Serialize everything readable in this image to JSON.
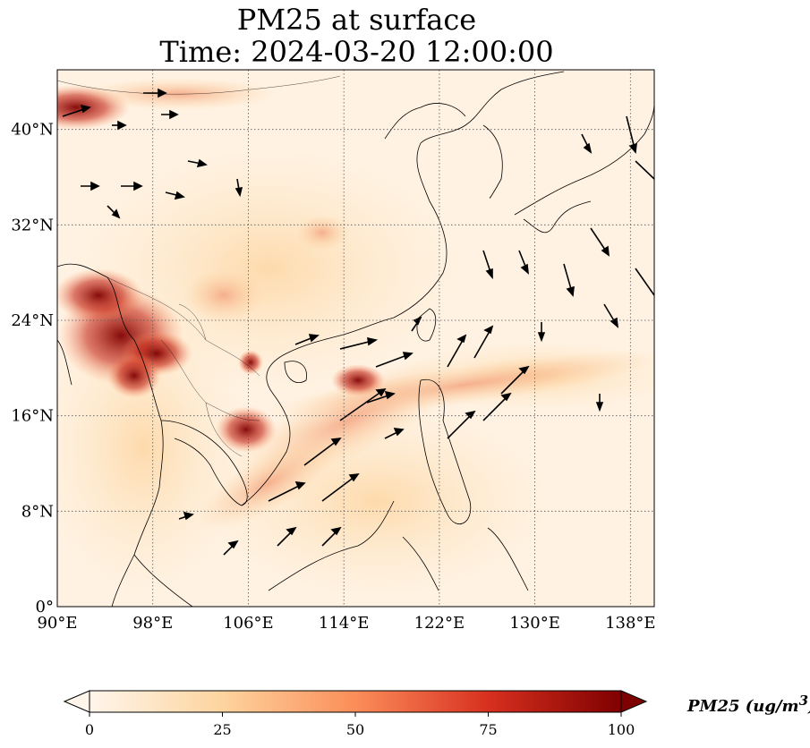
{
  "title_line1": "PM25 at surface",
  "title_line2": "Time: 2024-03-20 12:00:00",
  "map": {
    "lon_range": [
      90,
      140
    ],
    "lat_range": [
      0,
      45
    ],
    "lon_ticks": [
      {
        "value": 90,
        "label": "90°E"
      },
      {
        "value": 98,
        "label": "98°E"
      },
      {
        "value": 106,
        "label": "106°E"
      },
      {
        "value": 114,
        "label": "114°E"
      },
      {
        "value": 122,
        "label": "122°E"
      },
      {
        "value": 130,
        "label": "130°E"
      },
      {
        "value": 138,
        "label": "138°E"
      }
    ],
    "lat_ticks": [
      {
        "value": 0,
        "label": "0°"
      },
      {
        "value": 8,
        "label": "8°N"
      },
      {
        "value": 16,
        "label": "16°N"
      },
      {
        "value": 24,
        "label": "24°N"
      },
      {
        "value": 32,
        "label": "32°N"
      },
      {
        "value": 40,
        "label": "40°N"
      }
    ],
    "gridlines": true,
    "field": "PM25 surface concentration with wind vectors"
  },
  "colorbar": {
    "label": "PM25 (ug/m",
    "label_exp": "3",
    "label_end": ")",
    "range": [
      0,
      100
    ],
    "ticks": [
      "0",
      "25",
      "50",
      "75",
      "100"
    ],
    "colors": [
      "#fff5eb",
      "#fdd49e",
      "#fc8d59",
      "#d7301f",
      "#7f0000"
    ]
  }
}
